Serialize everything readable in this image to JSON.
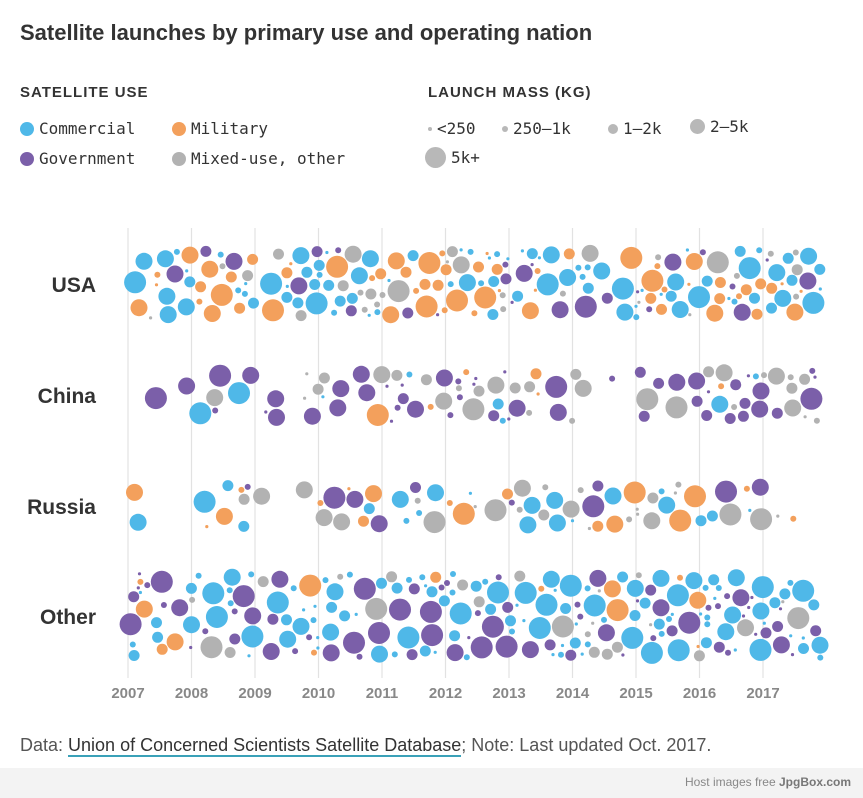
{
  "title": "Satellite launches by primary use and operating nation",
  "legend_use": {
    "heading": "SATELLITE USE",
    "items": [
      {
        "label": "Commercial",
        "color": "#4fb8e8"
      },
      {
        "label": "Military",
        "color": "#f3a05c"
      },
      {
        "label": "Government",
        "color": "#7b5fa9"
      },
      {
        "label": "Mixed-use, other",
        "color": "#b2b2b2"
      }
    ]
  },
  "legend_mass": {
    "heading": "LAUNCH MASS (KG)",
    "items": [
      {
        "label": "<250"
      },
      {
        "label": "250–1k"
      },
      {
        "label": "1–2k"
      },
      {
        "label": "2–5k"
      },
      {
        "label": "5k+"
      }
    ]
  },
  "footer": {
    "prefix": "Data: ",
    "link_text": "Union of Concerned Scientists Satellite Database",
    "suffix": "; Note: Last updated Oct. 2017."
  },
  "watermark": {
    "prefix": "Host images free ",
    "brand": "JpgBox.com"
  },
  "chart_data": {
    "type": "scatter",
    "title": "Satellite launches by primary use and operating nation",
    "x_ticks": [
      "2007",
      "2008",
      "2009",
      "2010",
      "2011",
      "2012",
      "2013",
      "2014",
      "2015",
      "2016",
      "2017"
    ],
    "xlim": [
      2007,
      2018
    ],
    "categories": [
      "USA",
      "China",
      "Russia",
      "Other"
    ],
    "grid": true,
    "series": [
      {
        "name": "Commercial",
        "color": "#4fb8e8"
      },
      {
        "name": "Military",
        "color": "#f3a05c"
      },
      {
        "name": "Government",
        "color": "#7b5fa9"
      },
      {
        "name": "Mixed-use, other",
        "color": "#b2b2b2"
      }
    ],
    "approx_density": {
      "USA": {
        "total": 330,
        "by_year": [
          17,
          30,
          28,
          32,
          30,
          36,
          26,
          20,
          34,
          36,
          40
        ],
        "mix": [
          0.45,
          0.33,
          0.08,
          0.14
        ]
      },
      "China": {
        "total": 130,
        "by_year": [
          2,
          6,
          7,
          8,
          15,
          28,
          12,
          3,
          8,
          22,
          19
        ],
        "mix": [
          0.1,
          0.12,
          0.5,
          0.28
        ]
      },
      "Russia": {
        "total": 110,
        "by_year": [
          2,
          9,
          2,
          14,
          9,
          6,
          20,
          14,
          18,
          10,
          2
        ],
        "mix": [
          0.3,
          0.32,
          0.1,
          0.28
        ]
      },
      "Other": {
        "total": 380,
        "by_year": [
          24,
          28,
          30,
          32,
          34,
          36,
          36,
          38,
          40,
          42,
          40
        ],
        "mix": [
          0.55,
          0.05,
          0.3,
          0.1
        ]
      }
    }
  }
}
